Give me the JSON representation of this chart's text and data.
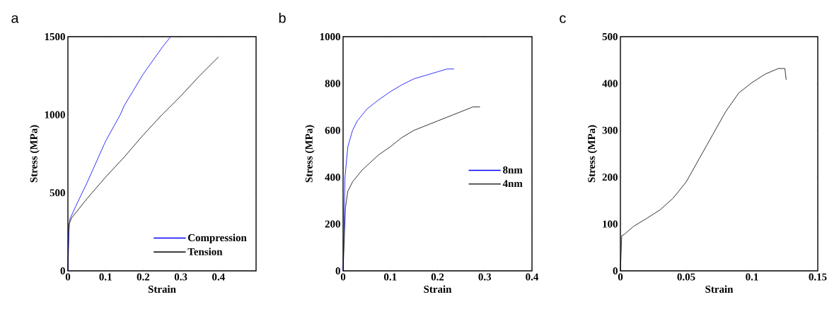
{
  "chart_data": [
    {
      "type": "line",
      "title": "a",
      "xlabel": "Strain",
      "ylabel": "Stress (MPa)",
      "xlim": [
        0,
        0.5
      ],
      "ylim": [
        0,
        1500
      ],
      "xticks": [
        0,
        0.1,
        0.2,
        0.3,
        0.4
      ],
      "yticks": [
        0,
        500,
        1000,
        1500
      ],
      "legend": "bottom right",
      "series": [
        {
          "name": "Compression",
          "color": "#0000ff",
          "x": [
            0,
            0.002,
            0.005,
            0.02,
            0.05,
            0.1,
            0.139,
            0.15,
            0.2,
            0.25,
            0.273
          ],
          "values": [
            0,
            250,
            330,
            410,
            560,
            830,
            1000,
            1060,
            1260,
            1430,
            1500
          ]
        },
        {
          "name": "Tension",
          "color": "#000000",
          "x": [
            0,
            0.003,
            0.01,
            0.05,
            0.064,
            0.1,
            0.15,
            0.2,
            0.25,
            0.3,
            0.35,
            0.4
          ],
          "values": [
            0,
            300,
            340,
            460,
            500,
            600,
            730,
            870,
            1000,
            1120,
            1250,
            1370
          ]
        }
      ]
    },
    {
      "type": "line",
      "title": "b",
      "xlabel": "Strain",
      "ylabel": "Stress (MPa)",
      "xlim": [
        0,
        0.4
      ],
      "ylim": [
        0,
        1000
      ],
      "xticks": [
        0,
        0.1,
        0.2,
        0.3,
        0.4
      ],
      "yticks": [
        0,
        200,
        400,
        600,
        800,
        1000
      ],
      "legend": "right",
      "series": [
        {
          "name": "8nm",
          "color": "#0000ff",
          "x": [
            0,
            0.004,
            0.01,
            0.02,
            0.03,
            0.05,
            0.075,
            0.1,
            0.125,
            0.15,
            0.2,
            0.22,
            0.235
          ],
          "values": [
            0,
            400,
            530,
            600,
            640,
            690,
            730,
            765,
            795,
            820,
            850,
            862,
            862
          ]
        },
        {
          "name": "4nm",
          "color": "#000000",
          "x": [
            0,
            0.005,
            0.01,
            0.02,
            0.04,
            0.075,
            0.1,
            0.125,
            0.15,
            0.2,
            0.25,
            0.275,
            0.29
          ],
          "values": [
            0,
            270,
            340,
            380,
            430,
            495,
            530,
            570,
            600,
            640,
            680,
            700,
            700
          ]
        }
      ]
    },
    {
      "type": "line",
      "title": "c",
      "xlabel": "Strain",
      "ylabel": "Stress (MPa)",
      "xlim": [
        0,
        0.15
      ],
      "ylim": [
        0,
        500
      ],
      "xticks": [
        0,
        0.05,
        0.1,
        0.15
      ],
      "yticks": [
        0,
        100,
        200,
        300,
        400,
        500
      ],
      "series": [
        {
          "color": "#000000",
          "x": [
            0,
            0.001,
            0.003,
            0.01,
            0.02,
            0.03,
            0.04,
            0.05,
            0.06,
            0.07,
            0.08,
            0.09,
            0.1,
            0.11,
            0.12,
            0.125,
            0.126
          ],
          "values": [
            0,
            75,
            78,
            95,
            112,
            130,
            155,
            190,
            240,
            290,
            340,
            380,
            402,
            420,
            432,
            432,
            408
          ]
        }
      ]
    }
  ]
}
